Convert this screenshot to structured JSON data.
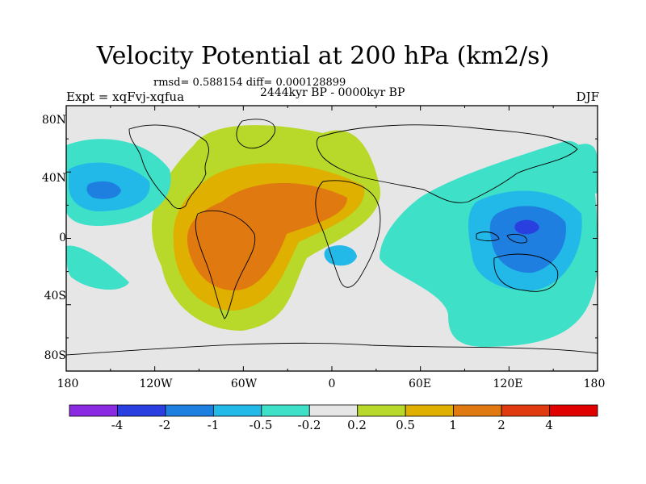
{
  "title": "Velocity Potential at 200 hPa (km2/s)",
  "stats_line": "rmsd= 0.588154  diff= 0.000128899",
  "experiment": "Expt = xqFvj-xqfua",
  "period": "2444kyr BP - 0000kyr BP",
  "season": "DJF",
  "lat_labels": [
    "80N",
    "40N",
    "0",
    "40S",
    "80S"
  ],
  "lon_labels": [
    "180",
    "120W",
    "60W",
    "0",
    "60E",
    "120E",
    "180"
  ],
  "colorbar": {
    "labels": [
      "-4",
      "-2",
      "-1",
      "-0.5",
      "-0.2",
      "0.2",
      "0.5",
      "1",
      "2",
      "4"
    ],
    "colors": [
      "#8a2be2",
      "#2a3fe0",
      "#1e7fe0",
      "#22b8e8",
      "#3ee0c8",
      "#e6e6e6",
      "#b8d82a",
      "#e0b000",
      "#e07a10",
      "#e03a10",
      "#e00000"
    ]
  },
  "colors": {
    "land": "#e6e6e6",
    "neg_weak": "#3ee0c8",
    "neg_mid": "#22b8e8",
    "neg_strong": "#1e7fe0",
    "neg_max": "#2a3fe0",
    "pos_weak": "#b8d82a",
    "pos_mid": "#e0b000",
    "pos_strong": "#e07a10"
  }
}
